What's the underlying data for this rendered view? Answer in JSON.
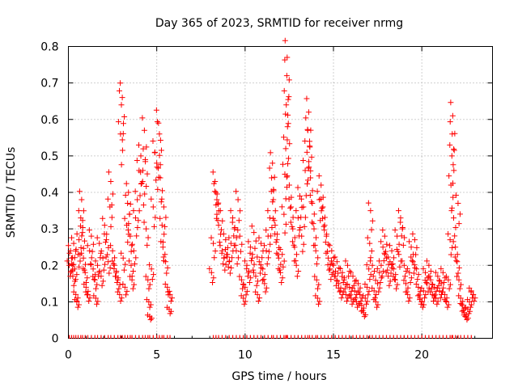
{
  "chart_data": {
    "type": "scatter",
    "title": "Day 365 of 2023, SRMTID for receiver nrmg",
    "xlabel": "GPS time / hours",
    "ylabel": "SRMTID / TECUs",
    "xlim": [
      0,
      24
    ],
    "ylim": [
      0,
      0.8
    ],
    "xticks": [
      "0",
      "5",
      "10",
      "15",
      "20"
    ],
    "yticks": [
      "0",
      "0.1",
      "0.2",
      "0.3",
      "0.4",
      "0.5",
      "0.6",
      "0.7",
      "0.8"
    ],
    "grid": true,
    "marker": "+",
    "color": "#ff0000",
    "series": [
      {
        "name": "SRMTID",
        "points": [
          [
            0.05,
            0.2
          ],
          [
            0.12,
            0.24
          ],
          [
            0.18,
            0.22
          ],
          [
            0.25,
            0.17
          ],
          [
            0.3,
            0.26
          ],
          [
            0.36,
            0.19
          ],
          [
            0.42,
            0.12
          ],
          [
            0.48,
            0.1
          ],
          [
            0.55,
            0.23
          ],
          [
            0.6,
            0.27
          ],
          [
            0.7,
            0.33
          ],
          [
            0.75,
            0.38
          ],
          [
            0.8,
            0.29
          ],
          [
            0.85,
            0.22
          ],
          [
            0.95,
            0.18
          ],
          [
            1.0,
            0.14
          ],
          [
            1.1,
            0.12
          ],
          [
            1.2,
            0.24
          ],
          [
            1.3,
            0.28
          ],
          [
            1.4,
            0.19
          ],
          [
            1.5,
            0.16
          ],
          [
            1.55,
            0.11
          ],
          [
            1.65,
            0.2
          ],
          [
            1.75,
            0.26
          ],
          [
            1.85,
            0.17
          ],
          [
            1.95,
            0.22
          ],
          [
            2.05,
            0.31
          ],
          [
            2.15,
            0.27
          ],
          [
            2.25,
            0.21
          ],
          [
            2.35,
            0.36
          ],
          [
            2.4,
            0.43
          ],
          [
            2.5,
            0.24
          ],
          [
            2.6,
            0.2
          ],
          [
            2.7,
            0.18
          ],
          [
            2.8,
            0.16
          ],
          [
            2.9,
            0.12
          ],
          [
            2.95,
            0.56
          ],
          [
            3.0,
            0.64
          ],
          [
            3.05,
            0.66
          ],
          [
            3.1,
            0.22
          ],
          [
            3.2,
            0.14
          ],
          [
            3.3,
            0.31
          ],
          [
            3.35,
            0.37
          ],
          [
            3.4,
            0.4
          ],
          [
            3.5,
            0.28
          ],
          [
            3.55,
            0.2
          ],
          [
            3.6,
            0.16
          ],
          [
            3.7,
            0.24
          ],
          [
            3.8,
            0.33
          ],
          [
            3.9,
            0.38
          ],
          [
            4.0,
            0.46
          ],
          [
            4.1,
            0.5
          ],
          [
            4.2,
            0.43
          ],
          [
            4.3,
            0.57
          ],
          [
            4.35,
            0.49
          ],
          [
            4.4,
            0.3
          ],
          [
            4.5,
            0.16
          ],
          [
            4.55,
            0.1
          ],
          [
            4.6,
            0.06
          ],
          [
            4.7,
            0.19
          ],
          [
            4.8,
            0.36
          ],
          [
            4.9,
            0.51
          ],
          [
            5.0,
            0.48
          ],
          [
            5.1,
            0.59
          ],
          [
            5.15,
            0.56
          ],
          [
            5.2,
            0.44
          ],
          [
            5.3,
            0.31
          ],
          [
            5.35,
            0.25
          ],
          [
            5.4,
            0.36
          ],
          [
            5.5,
            0.21
          ],
          [
            5.6,
            0.14
          ],
          [
            5.7,
            0.08
          ],
          [
            5.75,
            0.12
          ],
          [
            8.1,
            0.18
          ],
          [
            8.2,
            0.26
          ],
          [
            8.3,
            0.43
          ],
          [
            8.35,
            0.4
          ],
          [
            8.4,
            0.38
          ],
          [
            8.5,
            0.31
          ],
          [
            8.6,
            0.35
          ],
          [
            8.7,
            0.24
          ],
          [
            8.8,
            0.22
          ],
          [
            8.9,
            0.27
          ],
          [
            9.0,
            0.23
          ],
          [
            9.1,
            0.21
          ],
          [
            9.2,
            0.26
          ],
          [
            9.3,
            0.33
          ],
          [
            9.4,
            0.3
          ],
          [
            9.5,
            0.24
          ],
          [
            9.6,
            0.38
          ],
          [
            9.7,
            0.28
          ],
          [
            9.8,
            0.16
          ],
          [
            9.9,
            0.11
          ],
          [
            10.0,
            0.14
          ],
          [
            10.1,
            0.2
          ],
          [
            10.2,
            0.18
          ],
          [
            10.3,
            0.25
          ],
          [
            10.4,
            0.22
          ],
          [
            10.5,
            0.29
          ],
          [
            10.6,
            0.17
          ],
          [
            10.7,
            0.12
          ],
          [
            10.8,
            0.21
          ],
          [
            10.9,
            0.26
          ],
          [
            11.0,
            0.19
          ],
          [
            11.1,
            0.15
          ],
          [
            11.2,
            0.24
          ],
          [
            11.3,
            0.28
          ],
          [
            11.4,
            0.33
          ],
          [
            11.5,
            0.44
          ],
          [
            11.55,
            0.48
          ],
          [
            11.6,
            0.38
          ],
          [
            11.7,
            0.31
          ],
          [
            11.8,
            0.27
          ],
          [
            11.9,
            0.22
          ],
          [
            12.0,
            0.18
          ],
          [
            12.1,
            0.23
          ],
          [
            12.2,
            0.34
          ],
          [
            12.25,
            0.45
          ],
          [
            12.3,
            0.52
          ],
          [
            12.33,
            0.64
          ],
          [
            12.36,
            0.72
          ],
          [
            12.38,
            0.77
          ],
          [
            12.4,
            0.58
          ],
          [
            12.5,
            0.42
          ],
          [
            12.6,
            0.36
          ],
          [
            12.7,
            0.3
          ],
          [
            12.8,
            0.25
          ],
          [
            12.9,
            0.2
          ],
          [
            13.0,
            0.33
          ],
          [
            13.1,
            0.39
          ],
          [
            13.2,
            0.28
          ],
          [
            13.3,
            0.36
          ],
          [
            13.4,
            0.46
          ],
          [
            13.5,
            0.51
          ],
          [
            13.55,
            0.57
          ],
          [
            13.6,
            0.62
          ],
          [
            13.65,
            0.54
          ],
          [
            13.7,
            0.44
          ],
          [
            13.8,
            0.37
          ],
          [
            13.9,
            0.3
          ],
          [
            14.0,
            0.24
          ],
          [
            14.05,
            0.16
          ],
          [
            14.1,
            0.11
          ],
          [
            14.2,
            0.38
          ],
          [
            14.3,
            0.42
          ],
          [
            14.4,
            0.36
          ],
          [
            14.5,
            0.31
          ],
          [
            14.6,
            0.28
          ],
          [
            14.7,
            0.22
          ],
          [
            14.8,
            0.19
          ],
          [
            14.9,
            0.24
          ],
          [
            15.0,
            0.2
          ],
          [
            15.1,
            0.17
          ],
          [
            15.2,
            0.21
          ],
          [
            15.3,
            0.15
          ],
          [
            15.4,
            0.13
          ],
          [
            15.5,
            0.18
          ],
          [
            15.6,
            0.16
          ],
          [
            15.7,
            0.12
          ],
          [
            15.8,
            0.2
          ],
          [
            15.9,
            0.14
          ],
          [
            16.0,
            0.11
          ],
          [
            16.1,
            0.17
          ],
          [
            16.2,
            0.13
          ],
          [
            16.3,
            0.1
          ],
          [
            16.4,
            0.15
          ],
          [
            16.5,
            0.12
          ],
          [
            16.6,
            0.09
          ],
          [
            16.7,
            0.07
          ],
          [
            16.8,
            0.11
          ],
          [
            16.9,
            0.14
          ],
          [
            17.0,
            0.19
          ],
          [
            17.05,
            0.26
          ],
          [
            17.1,
            0.35
          ],
          [
            17.2,
            0.2
          ],
          [
            17.3,
            0.13
          ],
          [
            17.4,
            0.1
          ],
          [
            17.5,
            0.15
          ],
          [
            17.6,
            0.18
          ],
          [
            17.7,
            0.2
          ],
          [
            17.8,
            0.25
          ],
          [
            17.9,
            0.28
          ],
          [
            18.0,
            0.22
          ],
          [
            18.1,
            0.17
          ],
          [
            18.2,
            0.21
          ],
          [
            18.3,
            0.24
          ],
          [
            18.4,
            0.19
          ],
          [
            18.5,
            0.16
          ],
          [
            18.6,
            0.28
          ],
          [
            18.7,
            0.23
          ],
          [
            18.8,
            0.33
          ],
          [
            18.9,
            0.3
          ],
          [
            19.0,
            0.2
          ],
          [
            19.1,
            0.15
          ],
          [
            19.2,
            0.12
          ],
          [
            19.3,
            0.18
          ],
          [
            19.4,
            0.25
          ],
          [
            19.5,
            0.21
          ],
          [
            19.6,
            0.27
          ],
          [
            19.7,
            0.19
          ],
          [
            19.8,
            0.14
          ],
          [
            19.9,
            0.11
          ],
          [
            20.0,
            0.1
          ],
          [
            20.1,
            0.13
          ],
          [
            20.2,
            0.18
          ],
          [
            20.3,
            0.15
          ],
          [
            20.4,
            0.2
          ],
          [
            20.5,
            0.16
          ],
          [
            20.6,
            0.12
          ],
          [
            20.7,
            0.14
          ],
          [
            20.8,
            0.11
          ],
          [
            20.9,
            0.17
          ],
          [
            21.0,
            0.13
          ],
          [
            21.1,
            0.15
          ],
          [
            21.2,
            0.18
          ],
          [
            21.3,
            0.12
          ],
          [
            21.4,
            0.1
          ],
          [
            21.5,
            0.16
          ],
          [
            21.6,
            0.27
          ],
          [
            21.65,
            0.42
          ],
          [
            21.7,
            0.5
          ],
          [
            21.72,
            0.56
          ],
          [
            21.75,
            0.61
          ],
          [
            21.8,
            0.33
          ],
          [
            21.9,
            0.25
          ],
          [
            22.0,
            0.21
          ],
          [
            22.05,
            0.37
          ],
          [
            22.1,
            0.16
          ],
          [
            22.2,
            0.11
          ],
          [
            22.3,
            0.09
          ],
          [
            22.4,
            0.07
          ],
          [
            22.5,
            0.06
          ],
          [
            22.6,
            0.08
          ],
          [
            22.7,
            0.1
          ],
          [
            22.8,
            0.13
          ],
          [
            22.9,
            0.12
          ]
        ]
      }
    ]
  }
}
